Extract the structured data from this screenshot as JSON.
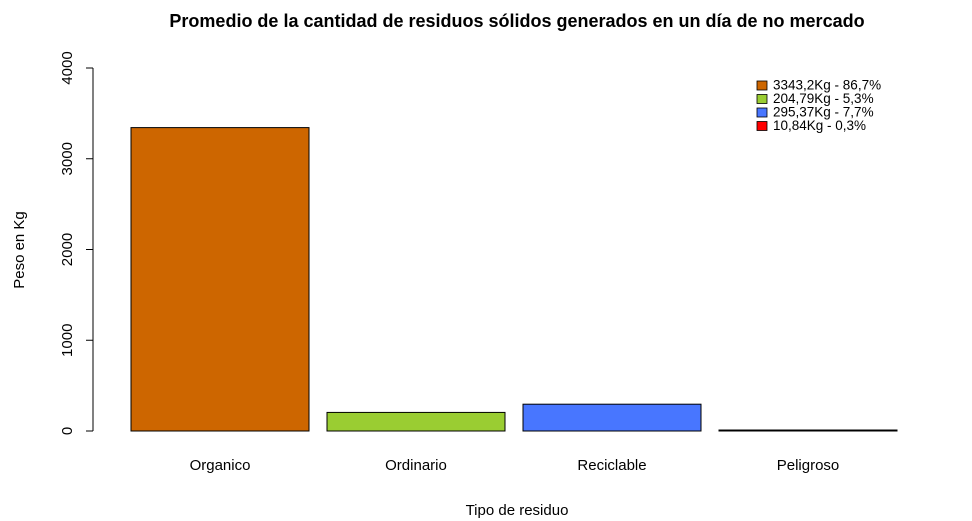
{
  "chart_data": {
    "type": "bar",
    "title": "Promedio de la cantidad de residuos sólidos generados en un día de no mercado",
    "x_label": "Tipo de residuo",
    "y_label": "Peso en Kg",
    "categories": [
      "Organico",
      "Ordinario",
      "Reciclable",
      "Peligroso"
    ],
    "values": [
      3343.2,
      204.79,
      295.37,
      10.84
    ],
    "colors": [
      "#CD6600",
      "#9ACD32",
      "#4876FF",
      "#FF0000"
    ],
    "legend": [
      "3343,2Kg - 86,7%",
      "204,79Kg - 5,3%",
      "295,37Kg - 7,7%",
      "10,84Kg - 0,3%"
    ],
    "legend_position": "topright",
    "ylim": [
      0,
      4000
    ],
    "yticks": [
      0,
      1000,
      2000,
      3000,
      4000
    ]
  }
}
